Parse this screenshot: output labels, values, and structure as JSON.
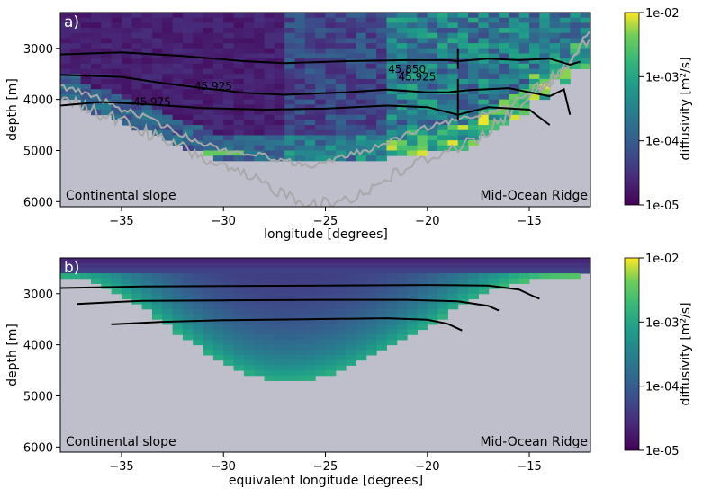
{
  "chart_data": [
    {
      "type": "heatmap",
      "panel_label": "a)",
      "xlabel": "longitude [degrees]",
      "ylabel": "depth [m]",
      "xlim": [
        -38,
        -12
      ],
      "ylim": [
        6100,
        2300
      ],
      "xticks": [
        -35,
        -30,
        -25,
        -20,
        -15
      ],
      "xtick_labels": [
        "−35",
        "−30",
        "−25",
        "−20",
        "−15"
      ],
      "yticks": [
        3000,
        4000,
        5000,
        6000
      ],
      "ytick_labels": [
        "3000",
        "4000",
        "5000",
        "6000"
      ],
      "colorbar": {
        "label": "diffusivity [m²/s]",
        "scale": "log",
        "range": [
          1e-05,
          0.01
        ],
        "tick_values": [
          1e-05,
          0.0001,
          0.001,
          0.01
        ],
        "tick_labels": [
          "1e-05",
          "1e-04",
          "1e-03",
          "1e-02"
        ]
      },
      "left_annotation": "Continental slope",
      "right_annotation": "Mid-Ocean Ridge",
      "contours": [
        {
          "label": "45.850",
          "label_pos": [
            -21,
            3480
          ],
          "points": [
            [
              -38,
              3120
            ],
            [
              -35,
              3080
            ],
            [
              -32,
              3150
            ],
            [
              -29,
              3250
            ],
            [
              -27,
              3290
            ],
            [
              -24,
              3250
            ],
            [
              -21,
              3230
            ],
            [
              -19,
              3230
            ],
            [
              -18.5,
              3250
            ],
            [
              -17,
              3200
            ],
            [
              -15.5,
              3230
            ],
            [
              -14,
              3200
            ],
            [
              -13,
              3320
            ],
            [
              -12.5,
              3260
            ]
          ]
        },
        {
          "label": "45.925",
          "label_pos": [
            -20.5,
            3630
          ],
          "points": [
            [
              -38,
              3520
            ],
            [
              -35,
              3560
            ],
            [
              -33,
              3680
            ],
            [
              -31,
              3780
            ],
            [
              -29,
              3870
            ],
            [
              -27,
              3910
            ],
            [
              -24,
              3860
            ],
            [
              -22,
              3810
            ],
            [
              -20,
              3860
            ],
            [
              -19,
              3860
            ],
            [
              -18,
              3820
            ],
            [
              -16,
              3780
            ],
            [
              -14.5,
              3900
            ],
            [
              -14,
              3940
            ],
            [
              -13.3,
              3800
            ],
            [
              -13,
              4300
            ]
          ]
        },
        {
          "label": "45.925",
          "label_pos": [
            -30.5,
            3810
          ],
          "points": []
        },
        {
          "label": "45.975",
          "label_pos": [
            -33.5,
            4120
          ],
          "points": [
            [
              -38,
              4120
            ],
            [
              -36,
              4050
            ],
            [
              -34,
              4090
            ],
            [
              -31,
              4170
            ],
            [
              -28,
              4200
            ],
            [
              -25,
              4180
            ],
            [
              -22,
              4120
            ],
            [
              -20,
              4150
            ],
            [
              -18.5,
              4300
            ],
            [
              -17,
              4150
            ],
            [
              -15,
              4200
            ],
            [
              -14,
              4500
            ]
          ]
        }
      ],
      "bathymetry_line_1": [
        [
          -38,
          3750
        ],
        [
          -37,
          3850
        ],
        [
          -36,
          4000
        ],
        [
          -35,
          4200
        ],
        [
          -34,
          4320
        ],
        [
          -33,
          4500
        ],
        [
          -32,
          4700
        ],
        [
          -31,
          4850
        ],
        [
          -30,
          5000
        ],
        [
          -29,
          5050
        ],
        [
          -28,
          5100
        ],
        [
          -27,
          5200
        ],
        [
          -26,
          5300
        ],
        [
          -25,
          5250
        ],
        [
          -24,
          5100
        ],
        [
          -23,
          5000
        ],
        [
          -22,
          4850
        ],
        [
          -21,
          4700
        ],
        [
          -20,
          4550
        ],
        [
          -19,
          4450
        ],
        [
          -18,
          4350
        ],
        [
          -17,
          4250
        ],
        [
          -16,
          4100
        ],
        [
          -15,
          3900
        ],
        [
          -14,
          3700
        ],
        [
          -13,
          3300
        ],
        [
          -12,
          2600
        ]
      ],
      "bathymetry_line_2": [
        [
          -38,
          4050
        ],
        [
          -37,
          4100
        ],
        [
          -36,
          4300
        ],
        [
          -35,
          4400
        ],
        [
          -34,
          4600
        ],
        [
          -33,
          4800
        ],
        [
          -32,
          4950
        ],
        [
          -31,
          5150
        ],
        [
          -30,
          5350
        ],
        [
          -29,
          5500
        ],
        [
          -28,
          5650
        ],
        [
          -27,
          5850
        ],
        [
          -26,
          6000
        ],
        [
          -25,
          6050
        ],
        [
          -24,
          5950
        ],
        [
          -23,
          5800
        ],
        [
          -22,
          5550
        ],
        [
          -21,
          5350
        ],
        [
          -20,
          5150
        ],
        [
          -19,
          5000
        ],
        [
          -18,
          4850
        ],
        [
          -17,
          4600
        ],
        [
          -16,
          4300
        ],
        [
          -15,
          3900
        ],
        [
          -14,
          3650
        ],
        [
          -13,
          3250
        ],
        [
          -12,
          2800
        ]
      ]
    },
    {
      "type": "heatmap",
      "panel_label": "b)",
      "xlabel": "equivalent longitude [degrees]",
      "ylabel": "depth [m]",
      "xlim": [
        -38,
        -12
      ],
      "ylim": [
        6100,
        2300
      ],
      "xticks": [
        -35,
        -30,
        -25,
        -20,
        -15
      ],
      "xtick_labels": [
        "−35",
        "−30",
        "−25",
        "−20",
        "−15"
      ],
      "yticks": [
        3000,
        4000,
        5000,
        6000
      ],
      "ytick_labels": [
        "3000",
        "4000",
        "5000",
        "6000"
      ],
      "colorbar": {
        "label": "diffusivity [m²/s]",
        "scale": "log",
        "range": [
          1e-05,
          0.01
        ],
        "tick_values": [
          1e-05,
          0.0001,
          0.001,
          0.01
        ],
        "tick_labels": [
          "1e-05",
          "1e-04",
          "1e-03",
          "1e-02"
        ]
      },
      "left_annotation": "Continental slope",
      "right_annotation": "Mid-Ocean Ridge",
      "contours": [
        {
          "points": [
            [
              -38,
              2890
            ],
            [
              -34,
              2860
            ],
            [
              -30,
              2850
            ],
            [
              -25,
              2840
            ],
            [
              -20,
              2830
            ],
            [
              -17,
              2840
            ],
            [
              -15.5,
              2920
            ],
            [
              -14.8,
              3050
            ],
            [
              -14.5,
              3100
            ]
          ]
        },
        {
          "points": [
            [
              -37.2,
              3200
            ],
            [
              -34,
              3140
            ],
            [
              -30,
              3130
            ],
            [
              -25,
              3120
            ],
            [
              -21,
              3120
            ],
            [
              -18.5,
              3150
            ],
            [
              -17,
              3240
            ],
            [
              -16.5,
              3330
            ]
          ]
        },
        {
          "points": [
            [
              -35.5,
              3600
            ],
            [
              -33,
              3550
            ],
            [
              -30,
              3520
            ],
            [
              -26,
              3500
            ],
            [
              -22,
              3480
            ],
            [
              -20,
              3510
            ],
            [
              -19,
              3590
            ],
            [
              -18.3,
              3720
            ]
          ]
        }
      ]
    }
  ]
}
